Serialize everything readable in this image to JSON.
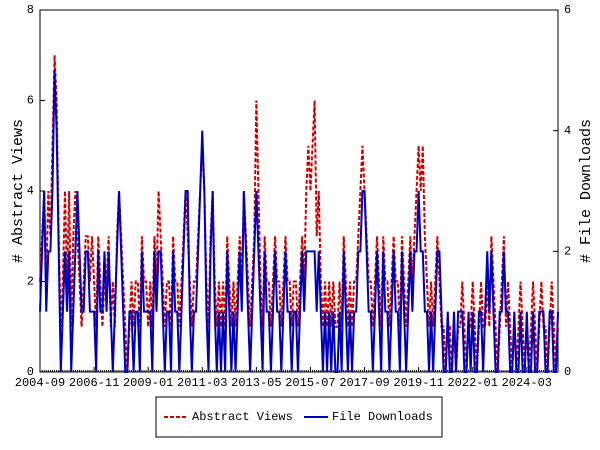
{
  "chart_data": {
    "type": "line",
    "y_label": "# Abstract Views",
    "y2_label": "# File Downloads",
    "categories": [
      "2004-09",
      null,
      null,
      null,
      null,
      null,
      null,
      null,
      null,
      null,
      null,
      null,
      null,
      null,
      null,
      null,
      null,
      null,
      null,
      null,
      null,
      null,
      null,
      null,
      null,
      null,
      "2006-11",
      null,
      null,
      null,
      null,
      null,
      null,
      null,
      null,
      null,
      null,
      null,
      null,
      null,
      null,
      null,
      null,
      null,
      null,
      null,
      null,
      null,
      null,
      null,
      null,
      null,
      "2009-01",
      null,
      null,
      null,
      null,
      null,
      null,
      null,
      null,
      null,
      null,
      null,
      null,
      null,
      null,
      null,
      null,
      null,
      null,
      null,
      null,
      null,
      null,
      null,
      null,
      null,
      "2011-03",
      null,
      null,
      null,
      null,
      null,
      null,
      null,
      null,
      null,
      null,
      null,
      null,
      null,
      null,
      null,
      null,
      null,
      null,
      null,
      null,
      null,
      null,
      null,
      null,
      null,
      "2013-05",
      null,
      null,
      null,
      null,
      null,
      null,
      null,
      null,
      null,
      null,
      null,
      null,
      null,
      null,
      null,
      null,
      null,
      null,
      null,
      null,
      null,
      null,
      null,
      null,
      null,
      "2015-07",
      null,
      null,
      null,
      null,
      null,
      null,
      null,
      null,
      null,
      null,
      null,
      null,
      null,
      null,
      null,
      null,
      null,
      null,
      null,
      null,
      null,
      null,
      null,
      null,
      null,
      "2017-09",
      null,
      null,
      null,
      null,
      null,
      null,
      null,
      null,
      null,
      null,
      null,
      null,
      null,
      null,
      null,
      null,
      null,
      null,
      null,
      null,
      null,
      null,
      null,
      null,
      null,
      "2019-11",
      null,
      null,
      null,
      null,
      null,
      null,
      null,
      null,
      null,
      null,
      null,
      null,
      null,
      null,
      null,
      null,
      null,
      null,
      null,
      null,
      null,
      null,
      null,
      null,
      null,
      "2022-01",
      null,
      null,
      null,
      null,
      null,
      null,
      null,
      null,
      null,
      null,
      null,
      null,
      null,
      null,
      null,
      null,
      null,
      null,
      null,
      null,
      null,
      null,
      null,
      null,
      null,
      "2024-03",
      null,
      null,
      null,
      null,
      null,
      null,
      null,
      null,
      null,
      null,
      null,
      null,
      null,
      null,
      null
    ],
    "series": [
      {
        "name": "Abstract Views",
        "color": "#cc0000",
        "dash": true,
        "values": [
          2,
          3,
          4,
          2,
          4,
          3,
          5,
          7,
          6,
          3,
          1,
          2,
          4,
          2,
          4,
          1,
          3,
          4,
          3,
          2,
          1,
          2,
          3,
          3,
          2,
          3,
          2,
          1,
          3,
          2,
          1,
          2,
          2,
          3,
          1,
          2,
          1,
          3,
          4,
          3,
          2,
          1,
          0,
          1,
          2,
          1,
          2,
          2,
          1,
          3,
          2,
          2,
          1,
          2,
          1,
          3,
          2,
          4,
          3,
          2,
          1,
          2,
          2,
          1,
          3,
          2,
          2,
          1,
          2,
          3,
          4,
          3,
          2,
          1,
          2,
          2,
          3,
          4,
          5,
          4,
          2,
          1,
          3,
          4,
          2,
          1,
          2,
          1,
          2,
          1,
          3,
          2,
          1,
          2,
          1,
          2,
          3,
          2,
          4,
          3,
          2,
          1,
          2,
          3,
          6,
          4,
          2,
          1,
          3,
          2,
          2,
          1,
          2,
          3,
          2,
          2,
          1,
          2,
          3,
          2,
          2,
          1,
          2,
          2,
          1,
          2,
          3,
          2,
          4,
          5,
          4,
          5,
          6,
          3,
          4,
          2,
          1,
          2,
          1,
          2,
          1,
          2,
          1,
          1,
          2,
          1,
          3,
          2,
          1,
          2,
          1,
          2,
          2,
          3,
          4,
          5,
          4,
          3,
          2,
          2,
          1,
          2,
          3,
          2,
          1,
          3,
          2,
          2,
          1,
          2,
          3,
          2,
          2,
          1,
          3,
          2,
          1,
          2,
          3,
          2,
          3,
          4,
          5,
          4,
          5,
          3,
          2,
          1,
          2,
          1,
          2,
          3,
          2,
          1,
          1,
          0,
          1,
          1,
          0,
          1,
          0,
          1,
          1,
          2,
          1,
          0,
          1,
          1,
          2,
          1,
          0,
          1,
          2,
          1,
          1,
          2,
          1,
          3,
          2,
          1,
          0,
          1,
          2,
          3,
          1,
          2,
          1,
          0,
          1,
          0,
          1,
          2,
          1,
          0,
          1,
          0,
          1,
          2,
          1,
          0,
          1,
          2,
          1,
          1,
          0,
          1,
          2,
          1,
          0,
          1
        ]
      },
      {
        "name": "File Downloads",
        "color": "#0000bb",
        "axis": "y2",
        "values": [
          1,
          2,
          3,
          1,
          2,
          2,
          3,
          5,
          4,
          2,
          0,
          1,
          2,
          1,
          2,
          0,
          1,
          2,
          3,
          2,
          1,
          1,
          2,
          2,
          1,
          1,
          1,
          0,
          2,
          1,
          1,
          2,
          1,
          2,
          1,
          0,
          1,
          2,
          3,
          2,
          1,
          0,
          0,
          1,
          1,
          0,
          1,
          1,
          0,
          2,
          1,
          1,
          1,
          1,
          0,
          2,
          1,
          2,
          2,
          1,
          0,
          1,
          1,
          0,
          2,
          1,
          1,
          0,
          1,
          2,
          3,
          3,
          1,
          0,
          1,
          1,
          2,
          3,
          4,
          3,
          1,
          0,
          2,
          3,
          1,
          0,
          1,
          0,
          1,
          0,
          2,
          1,
          0,
          1,
          0,
          1,
          2,
          1,
          3,
          2,
          1,
          0,
          1,
          2,
          3,
          2,
          1,
          0,
          2,
          1,
          1,
          0,
          1,
          2,
          1,
          1,
          0,
          1,
          2,
          1,
          1,
          0,
          1,
          1,
          0,
          1,
          2,
          1,
          2,
          2,
          2,
          2,
          2,
          1,
          2,
          1,
          0,
          1,
          0,
          1,
          0,
          1,
          0,
          0,
          1,
          0,
          2,
          1,
          0,
          1,
          0,
          1,
          1,
          2,
          2,
          3,
          3,
          2,
          1,
          1,
          0,
          1,
          2,
          1,
          0,
          2,
          1,
          1,
          0,
          1,
          2,
          1,
          1,
          0,
          2,
          1,
          0,
          1,
          2,
          1,
          2,
          2,
          3,
          2,
          2,
          1,
          1,
          0,
          1,
          0,
          1,
          2,
          2,
          1,
          0,
          0,
          1,
          0,
          0,
          1,
          0,
          1,
          1,
          1,
          0,
          0,
          1,
          0,
          1,
          0,
          0,
          1,
          1,
          0,
          1,
          2,
          1,
          2,
          1,
          0,
          0,
          1,
          1,
          2,
          1,
          1,
          0,
          0,
          1,
          0,
          0,
          1,
          0,
          0,
          1,
          0,
          0,
          1,
          0,
          0,
          1,
          1,
          1,
          0,
          0,
          1,
          1,
          0,
          0,
          1
        ]
      }
    ],
    "ylim": [
      0,
      8
    ],
    "yticks": [
      0,
      2,
      4,
      6,
      8
    ],
    "y2lim": [
      0,
      6
    ],
    "y2ticks": [
      0,
      2,
      4,
      6
    ]
  }
}
